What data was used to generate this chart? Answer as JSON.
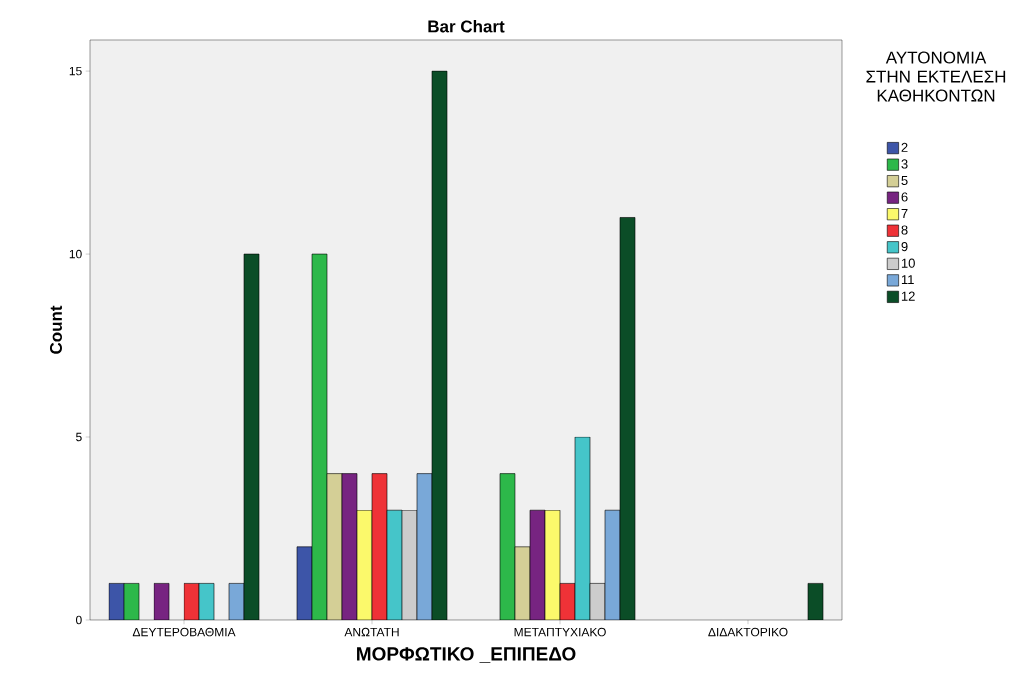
{
  "chart_data": {
    "type": "bar",
    "title": "Bar Chart",
    "xlabel": "ΜΟΡΦΩΤΙΚΟ _ΕΠΙΠΕΔΟ",
    "ylabel": "Count",
    "legend_title": "ΑΥΤΟΝΟΜΙΑ ΣΤΗΝ ΕΚΤΕΛΕΣΗ ΚΑΘΗΚΟΝΤΩΝ",
    "legend": "right",
    "grid": false,
    "categories": [
      "ΔΕΥΤΕΡΟΒΑΘΜΙΑ",
      "ΑΝΩΤΑΤΗ",
      "ΜΕΤΑΠΤΥΧΙΑΚΟ",
      "ΔΙΔΑΚΤΟΡΙΚΟ"
    ],
    "ylim": [
      0,
      15.85
    ],
    "yticks": [
      0,
      5,
      10,
      15
    ],
    "series": [
      {
        "name": "2",
        "color": "#3d55a8",
        "values": [
          1,
          2,
          null,
          null
        ]
      },
      {
        "name": "3",
        "color": "#2db84a",
        "values": [
          1,
          10,
          4,
          null
        ]
      },
      {
        "name": "5",
        "color": "#d4cf96",
        "values": [
          null,
          4,
          2,
          null
        ]
      },
      {
        "name": "6",
        "color": "#772481",
        "values": [
          1,
          4,
          3,
          null
        ]
      },
      {
        "name": "7",
        "color": "#fbf96b",
        "values": [
          null,
          3,
          3,
          null
        ]
      },
      {
        "name": "8",
        "color": "#ef3237",
        "values": [
          1,
          4,
          1,
          null
        ]
      },
      {
        "name": "9",
        "color": "#45c5c9",
        "values": [
          1,
          3,
          5,
          null
        ]
      },
      {
        "name": "10",
        "color": "#cccccc",
        "values": [
          null,
          3,
          1,
          null
        ]
      },
      {
        "name": "11",
        "color": "#79a8d8",
        "values": [
          1,
          4,
          3,
          null
        ]
      },
      {
        "name": "12",
        "color": "#0b4d27",
        "values": [
          10,
          15,
          11,
          1
        ]
      }
    ]
  }
}
